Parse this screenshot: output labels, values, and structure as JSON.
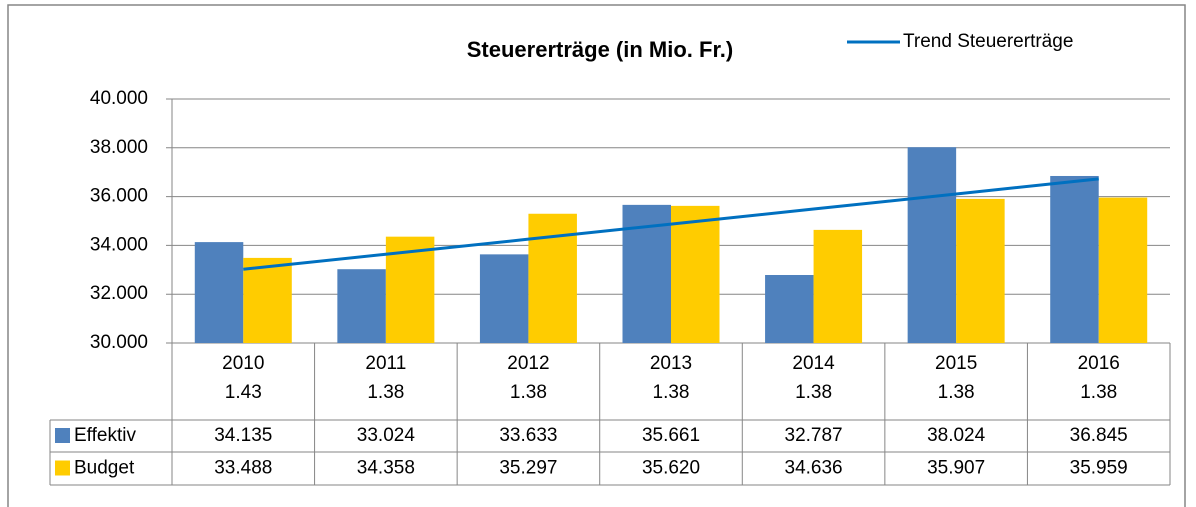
{
  "chart_data": {
    "type": "bar",
    "title": "Steuererträge (in Mio. Fr.)",
    "categories": [
      "2010",
      "2011",
      "2012",
      "2013",
      "2014",
      "2015",
      "2016"
    ],
    "subcategories": [
      "1.43",
      "1.38",
      "1.38",
      "1.38",
      "1.38",
      "1.38",
      "1.38"
    ],
    "series": [
      {
        "name": "Effektiv",
        "color": "#4f81bd",
        "values": [
          34135,
          33024,
          33633,
          35661,
          32787,
          38024,
          36845
        ],
        "value_labels": [
          "34.135",
          "33.024",
          "33.633",
          "35.661",
          "32.787",
          "38.024",
          "36.845"
        ]
      },
      {
        "name": "Budget",
        "color": "#ffcc00",
        "values": [
          33488,
          34358,
          35297,
          35620,
          34636,
          35907,
          35959
        ],
        "value_labels": [
          "33.488",
          "34.358",
          "35.297",
          "35.620",
          "34.636",
          "35.907",
          "35.959"
        ]
      },
      {
        "name": "Trend Steuererträge",
        "type": "line",
        "color": "#0070c0",
        "values": [
          33021,
          33638,
          34255,
          34873,
          35490,
          36107,
          36725
        ]
      }
    ],
    "ylim": [
      30000,
      40000
    ],
    "yticks": [
      {
        "value": 30000,
        "label": "30.000"
      },
      {
        "value": 32000,
        "label": "32.000"
      },
      {
        "value": 34000,
        "label": "34.000"
      },
      {
        "value": 36000,
        "label": "36.000"
      },
      {
        "value": 38000,
        "label": "38.000"
      },
      {
        "value": 40000,
        "label": "40.000"
      }
    ],
    "grid": true,
    "legend": "top-right"
  }
}
